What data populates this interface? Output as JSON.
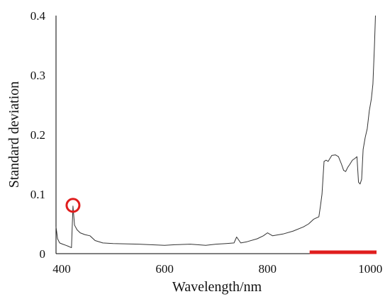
{
  "chart_data": {
    "type": "line",
    "title": "",
    "xlabel": "Wavelength/nm",
    "ylabel": "Standard  deviation",
    "xlim": [
      389,
      1012
    ],
    "ylim": [
      0,
      0.4
    ],
    "xticks": [
      400,
      600,
      800,
      1000
    ],
    "yticks": [
      0,
      0.1,
      0.2,
      0.3,
      0.4
    ],
    "xtick_labels": [
      "400",
      "600",
      "800",
      "1000"
    ],
    "ytick_labels": [
      "0",
      "0.1",
      "0.2",
      "0.3",
      "0.4"
    ],
    "grid": false,
    "legend": "none",
    "colors": {
      "line": "#333333",
      "marker": "#e01e1e",
      "axis": "#000000"
    },
    "series": [
      {
        "x": [
          389,
          392,
          396,
          402,
          408,
          414,
          419,
          422,
          425,
          430,
          436,
          445,
          455,
          465,
          480,
          500,
          550,
          600,
          620,
          650,
          680,
          700,
          720,
          735,
          740,
          748,
          760,
          780,
          792,
          800,
          810,
          830,
          850,
          870,
          880,
          890,
          895,
          900,
          903,
          906,
          910,
          914,
          918,
          925,
          932,
          938,
          944,
          948,
          952,
          956,
          960,
          965,
          970,
          974,
          977,
          980,
          983,
          986,
          990,
          994,
          998,
          1002,
          1005,
          1008,
          1010
        ],
        "y": [
          0.045,
          0.025,
          0.018,
          0.016,
          0.014,
          0.012,
          0.01,
          0.08,
          0.048,
          0.04,
          0.035,
          0.032,
          0.03,
          0.022,
          0.018,
          0.017,
          0.016,
          0.014,
          0.015,
          0.016,
          0.014,
          0.016,
          0.017,
          0.018,
          0.028,
          0.018,
          0.02,
          0.025,
          0.03,
          0.035,
          0.03,
          0.033,
          0.038,
          0.045,
          0.05,
          0.058,
          0.06,
          0.062,
          0.08,
          0.1,
          0.155,
          0.157,
          0.155,
          0.165,
          0.166,
          0.163,
          0.15,
          0.14,
          0.138,
          0.145,
          0.15,
          0.157,
          0.16,
          0.163,
          0.12,
          0.117,
          0.125,
          0.175,
          0.195,
          0.21,
          0.24,
          0.26,
          0.285,
          0.35,
          0.4
        ]
      }
    ],
    "annotations": [
      {
        "type": "circle",
        "x": 422,
        "y": 0.08,
        "color": "#e01e1e"
      },
      {
        "type": "bar-segment",
        "x_start": 882,
        "x_end": 1012,
        "y": 0.0,
        "color": "#e01e1e"
      }
    ]
  }
}
